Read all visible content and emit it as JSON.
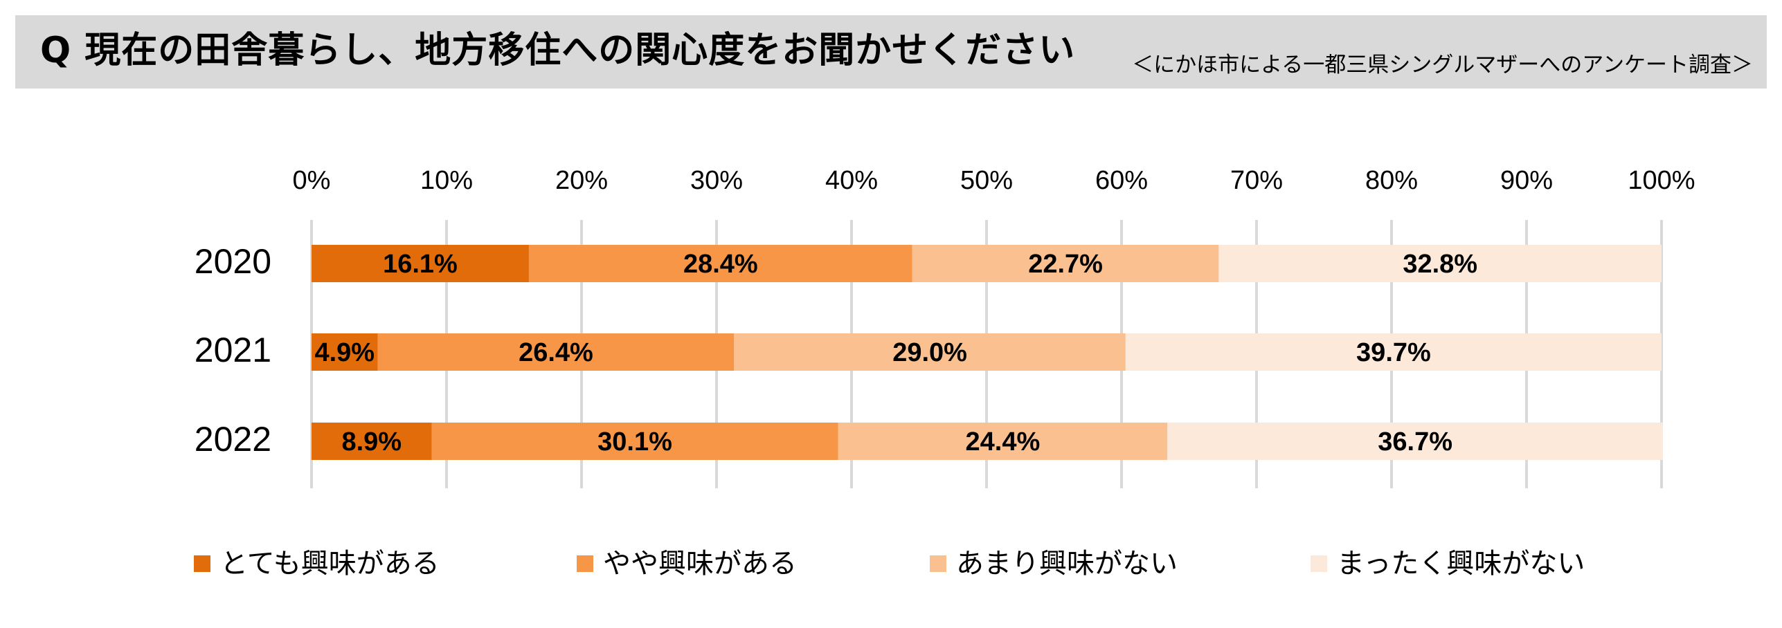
{
  "header": {
    "title": "Q 現在の田舎暮らし、地方移住への関心度をお聞かせください",
    "subtitle": "＜にかほ市による一都三県シングルマザーへのアンケート調査＞"
  },
  "colors": {
    "header_bg": "#d9d9d9",
    "series": [
      "#e36c0a",
      "#f79646",
      "#fac090",
      "#fde9d9"
    ],
    "grid": "#d9d9d9"
  },
  "chart_data": {
    "type": "bar",
    "orientation": "horizontal",
    "stacked": true,
    "percent_scale": true,
    "categories": [
      "2020",
      "2021",
      "2022"
    ],
    "x_ticks": [
      "0%",
      "10%",
      "20%",
      "30%",
      "40%",
      "50%",
      "60%",
      "70%",
      "80%",
      "90%",
      "100%"
    ],
    "xlim": [
      0,
      100
    ],
    "x_axis_position": "top",
    "grid": true,
    "legend_position": "bottom",
    "series": [
      {
        "name": "とても興味がある",
        "values": [
          16.1,
          4.9,
          8.9
        ],
        "labels": [
          "16.1%",
          "4.9%",
          "8.9%"
        ]
      },
      {
        "name": "やや興味がある",
        "values": [
          28.4,
          26.4,
          30.1
        ],
        "labels": [
          "28.4%",
          "26.4%",
          "30.1%"
        ]
      },
      {
        "name": "あまり興味がない",
        "values": [
          22.7,
          29.0,
          24.4
        ],
        "labels": [
          "22.7%",
          "29.0%",
          "24.4%"
        ]
      },
      {
        "name": "まったく興味がない",
        "values": [
          32.8,
          39.7,
          36.7
        ],
        "labels": [
          "32.8%",
          "39.7%",
          "36.7%"
        ]
      }
    ]
  }
}
